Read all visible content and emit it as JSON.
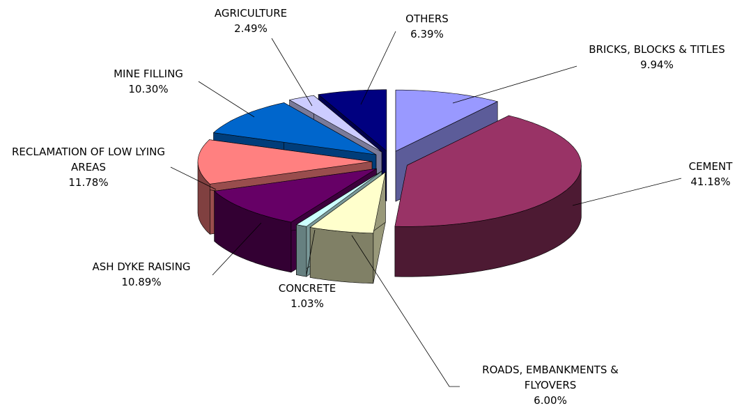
{
  "chart_data": {
    "type": "pie3d",
    "categories": [
      "BRICKS, BLOCKS & TITLES",
      "CEMENT",
      "ROADS, EMBANKMENTS & FLYOVERS",
      "CONCRETE",
      "ASH DYKE RAISING",
      "RECLAMATION OF LOW LYING AREAS",
      "MINE FILLING",
      "AGRICULTURE",
      "OTHERS"
    ],
    "values": [
      9.94,
      41.18,
      6.0,
      1.03,
      10.89,
      11.78,
      10.3,
      2.49,
      6.39
    ],
    "value_labels": [
      "9.94%",
      "41.18%",
      "6.00%",
      "1.03%",
      "10.89%",
      "11.78%",
      "10.30%",
      "2.49%",
      "6.39%"
    ],
    "colors": [
      "#9999ff",
      "#993366",
      "#ffffcc",
      "#ccffff",
      "#660066",
      "#ff8080",
      "#0066cc",
      "#ccccff",
      "#000080"
    ]
  }
}
